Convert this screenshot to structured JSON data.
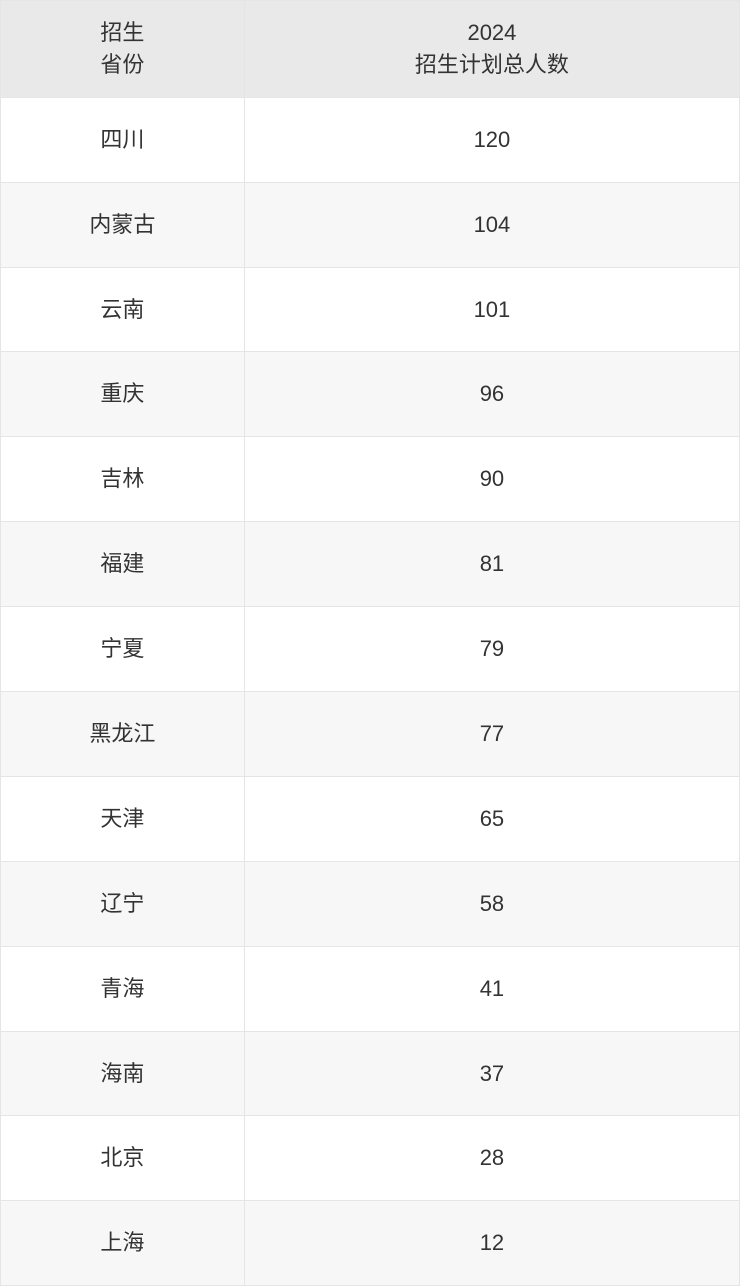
{
  "table": {
    "type": "table",
    "columns": [
      {
        "key": "province",
        "lines": [
          "招生",
          "省份"
        ],
        "width_pct": 33,
        "align": "center"
      },
      {
        "key": "total",
        "lines": [
          "2024",
          "招生计划总人数"
        ],
        "width_pct": 67,
        "align": "center"
      }
    ],
    "rows": [
      {
        "province": "四川",
        "total": "120"
      },
      {
        "province": "内蒙古",
        "total": "104"
      },
      {
        "province": "云南",
        "total": "101"
      },
      {
        "province": "重庆",
        "total": "96"
      },
      {
        "province": "吉林",
        "total": "90"
      },
      {
        "province": "福建",
        "total": "81"
      },
      {
        "province": "宁夏",
        "total": "79"
      },
      {
        "province": "黑龙江",
        "total": "77"
      },
      {
        "province": "天津",
        "total": "65"
      },
      {
        "province": "辽宁",
        "total": "58"
      },
      {
        "province": "青海",
        "total": "41"
      },
      {
        "province": "海南",
        "total": "37"
      },
      {
        "province": "北京",
        "total": "28"
      },
      {
        "province": "上海",
        "total": "12"
      }
    ],
    "style": {
      "header_bg": "#e9e9e9",
      "row_bg_odd": "#ffffff",
      "row_bg_even": "#f7f7f7",
      "border_color": "#e5e5e5",
      "text_color": "#333333",
      "header_fontsize_pt": 16,
      "cell_fontsize_pt": 16,
      "font_weight": 400
    }
  }
}
